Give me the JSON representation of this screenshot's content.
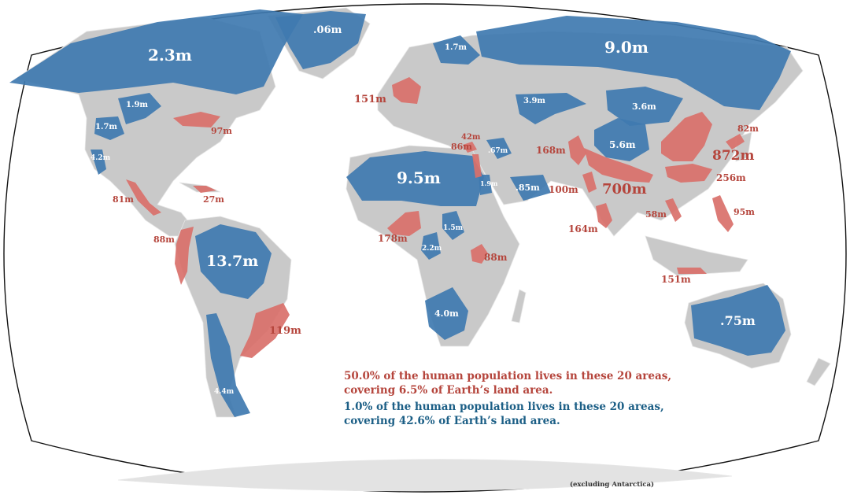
{
  "colors": {
    "ocean": "#ffffff",
    "land": "#c9c9c9",
    "border": "#e6e6e6",
    "sparse": "#3f7ab0",
    "dense": "#d9706a",
    "dense_text": "#b5453c",
    "sparse_text": "#1c5f86"
  },
  "sparse_areas": [
    {
      "id": "north-america-arctic",
      "label": "2.3m"
    },
    {
      "id": "greenland",
      "label": ".06m"
    },
    {
      "id": "scandinavia",
      "label": "1.7m"
    },
    {
      "id": "siberia",
      "label": "9.0m"
    },
    {
      "id": "canada-central",
      "label": "1.9m"
    },
    {
      "id": "us-west",
      "label": "1.7m"
    },
    {
      "id": "baja",
      "label": "4.2m"
    },
    {
      "id": "kazakhstan",
      "label": "3.9m"
    },
    {
      "id": "mongolia",
      "label": "3.6m"
    },
    {
      "id": "tibet",
      "label": "5.6m"
    },
    {
      "id": "sahara",
      "label": "9.5m"
    },
    {
      "id": "syrian-desert",
      "label": ".67m"
    },
    {
      "id": "red-sea",
      "label": "1.9m"
    },
    {
      "id": "arabia",
      "label": ".85m"
    },
    {
      "id": "central-africa",
      "label": "1.5m"
    },
    {
      "id": "gabon",
      "label": "2.2m"
    },
    {
      "id": "kalahari",
      "label": "4.0m"
    },
    {
      "id": "amazon",
      "label": "13.7m"
    },
    {
      "id": "patagonia",
      "label": "4.4m"
    },
    {
      "id": "australia",
      "label": ".75m"
    }
  ],
  "dense_areas": [
    {
      "id": "europe",
      "label": "151m"
    },
    {
      "id": "us-northeast",
      "label": "97m"
    },
    {
      "id": "central-mexico",
      "label": "81m"
    },
    {
      "id": "caribbean",
      "label": "27m"
    },
    {
      "id": "andes",
      "label": "88m"
    },
    {
      "id": "se-brazil",
      "label": "119m"
    },
    {
      "id": "turkey",
      "label": "42m"
    },
    {
      "id": "nile",
      "label": "86m"
    },
    {
      "id": "west-africa",
      "label": "178m"
    },
    {
      "id": "east-africa",
      "label": "88m"
    },
    {
      "id": "pakistan",
      "label": "168m"
    },
    {
      "id": "gujarat",
      "label": "100m"
    },
    {
      "id": "ganges",
      "label": "700m"
    },
    {
      "id": "south-india",
      "label": "164m"
    },
    {
      "id": "china",
      "label": "872m"
    },
    {
      "id": "japan",
      "label": "82m"
    },
    {
      "id": "south-china",
      "label": "256m"
    },
    {
      "id": "vietnam",
      "label": "58m"
    },
    {
      "id": "philippines",
      "label": "95m"
    },
    {
      "id": "java",
      "label": "151m"
    }
  ],
  "caption": {
    "dense_line1": "50.0% of the human population lives in these 20 areas,",
    "dense_line2": "covering 6.5% of Earth’s land area.",
    "sparse_line1": "1.0% of the human population lives in these 20 areas,",
    "sparse_line2": "covering 42.6% of Earth’s land area."
  },
  "footnote": "(excluding Antarctica)"
}
